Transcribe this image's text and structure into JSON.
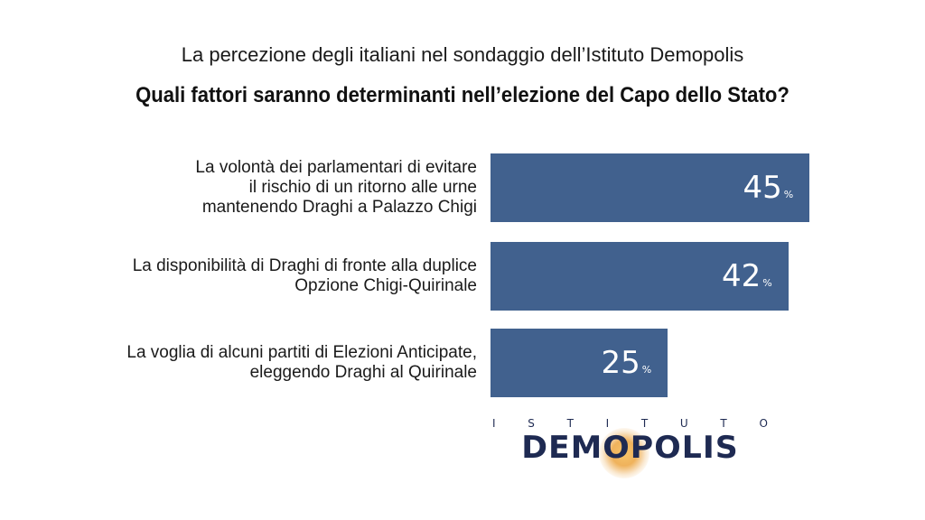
{
  "header": {
    "subtitle": "La percezione degli italiani nel sondaggio dell’Istituto Demopolis",
    "title": "Quali fattori saranno determinanti nell’elezione del Capo dello Stato?"
  },
  "chart_data": {
    "type": "bar",
    "orientation": "horizontal",
    "title": "Quali fattori saranno determinanti nell’elezione del Capo dello Stato?",
    "subtitle": "La percezione degli italiani nel sondaggio dell’Istituto Demopolis",
    "categories": [
      "La volontà dei parlamentari di evitare\nil rischio di un ritorno alle urne\nmantenendo Draghi a Palazzo Chigi",
      "La disponibilità di Draghi di fronte alla duplice\nOpzione Chigi-Quirinale",
      "La voglia di alcuni partiti di Elezioni Anticipate,\neleggendo Draghi al Quirinale"
    ],
    "values": [
      45,
      42,
      25
    ],
    "unit": "%",
    "xlim": [
      0,
      100
    ],
    "grid": false,
    "bar_color": "#41618e"
  },
  "logo": {
    "top_text": [
      "I",
      "S",
      "T",
      "I",
      "T",
      "U",
      "T",
      "O"
    ],
    "word": "DEMOPOLIS",
    "color": "#1e2a52"
  }
}
